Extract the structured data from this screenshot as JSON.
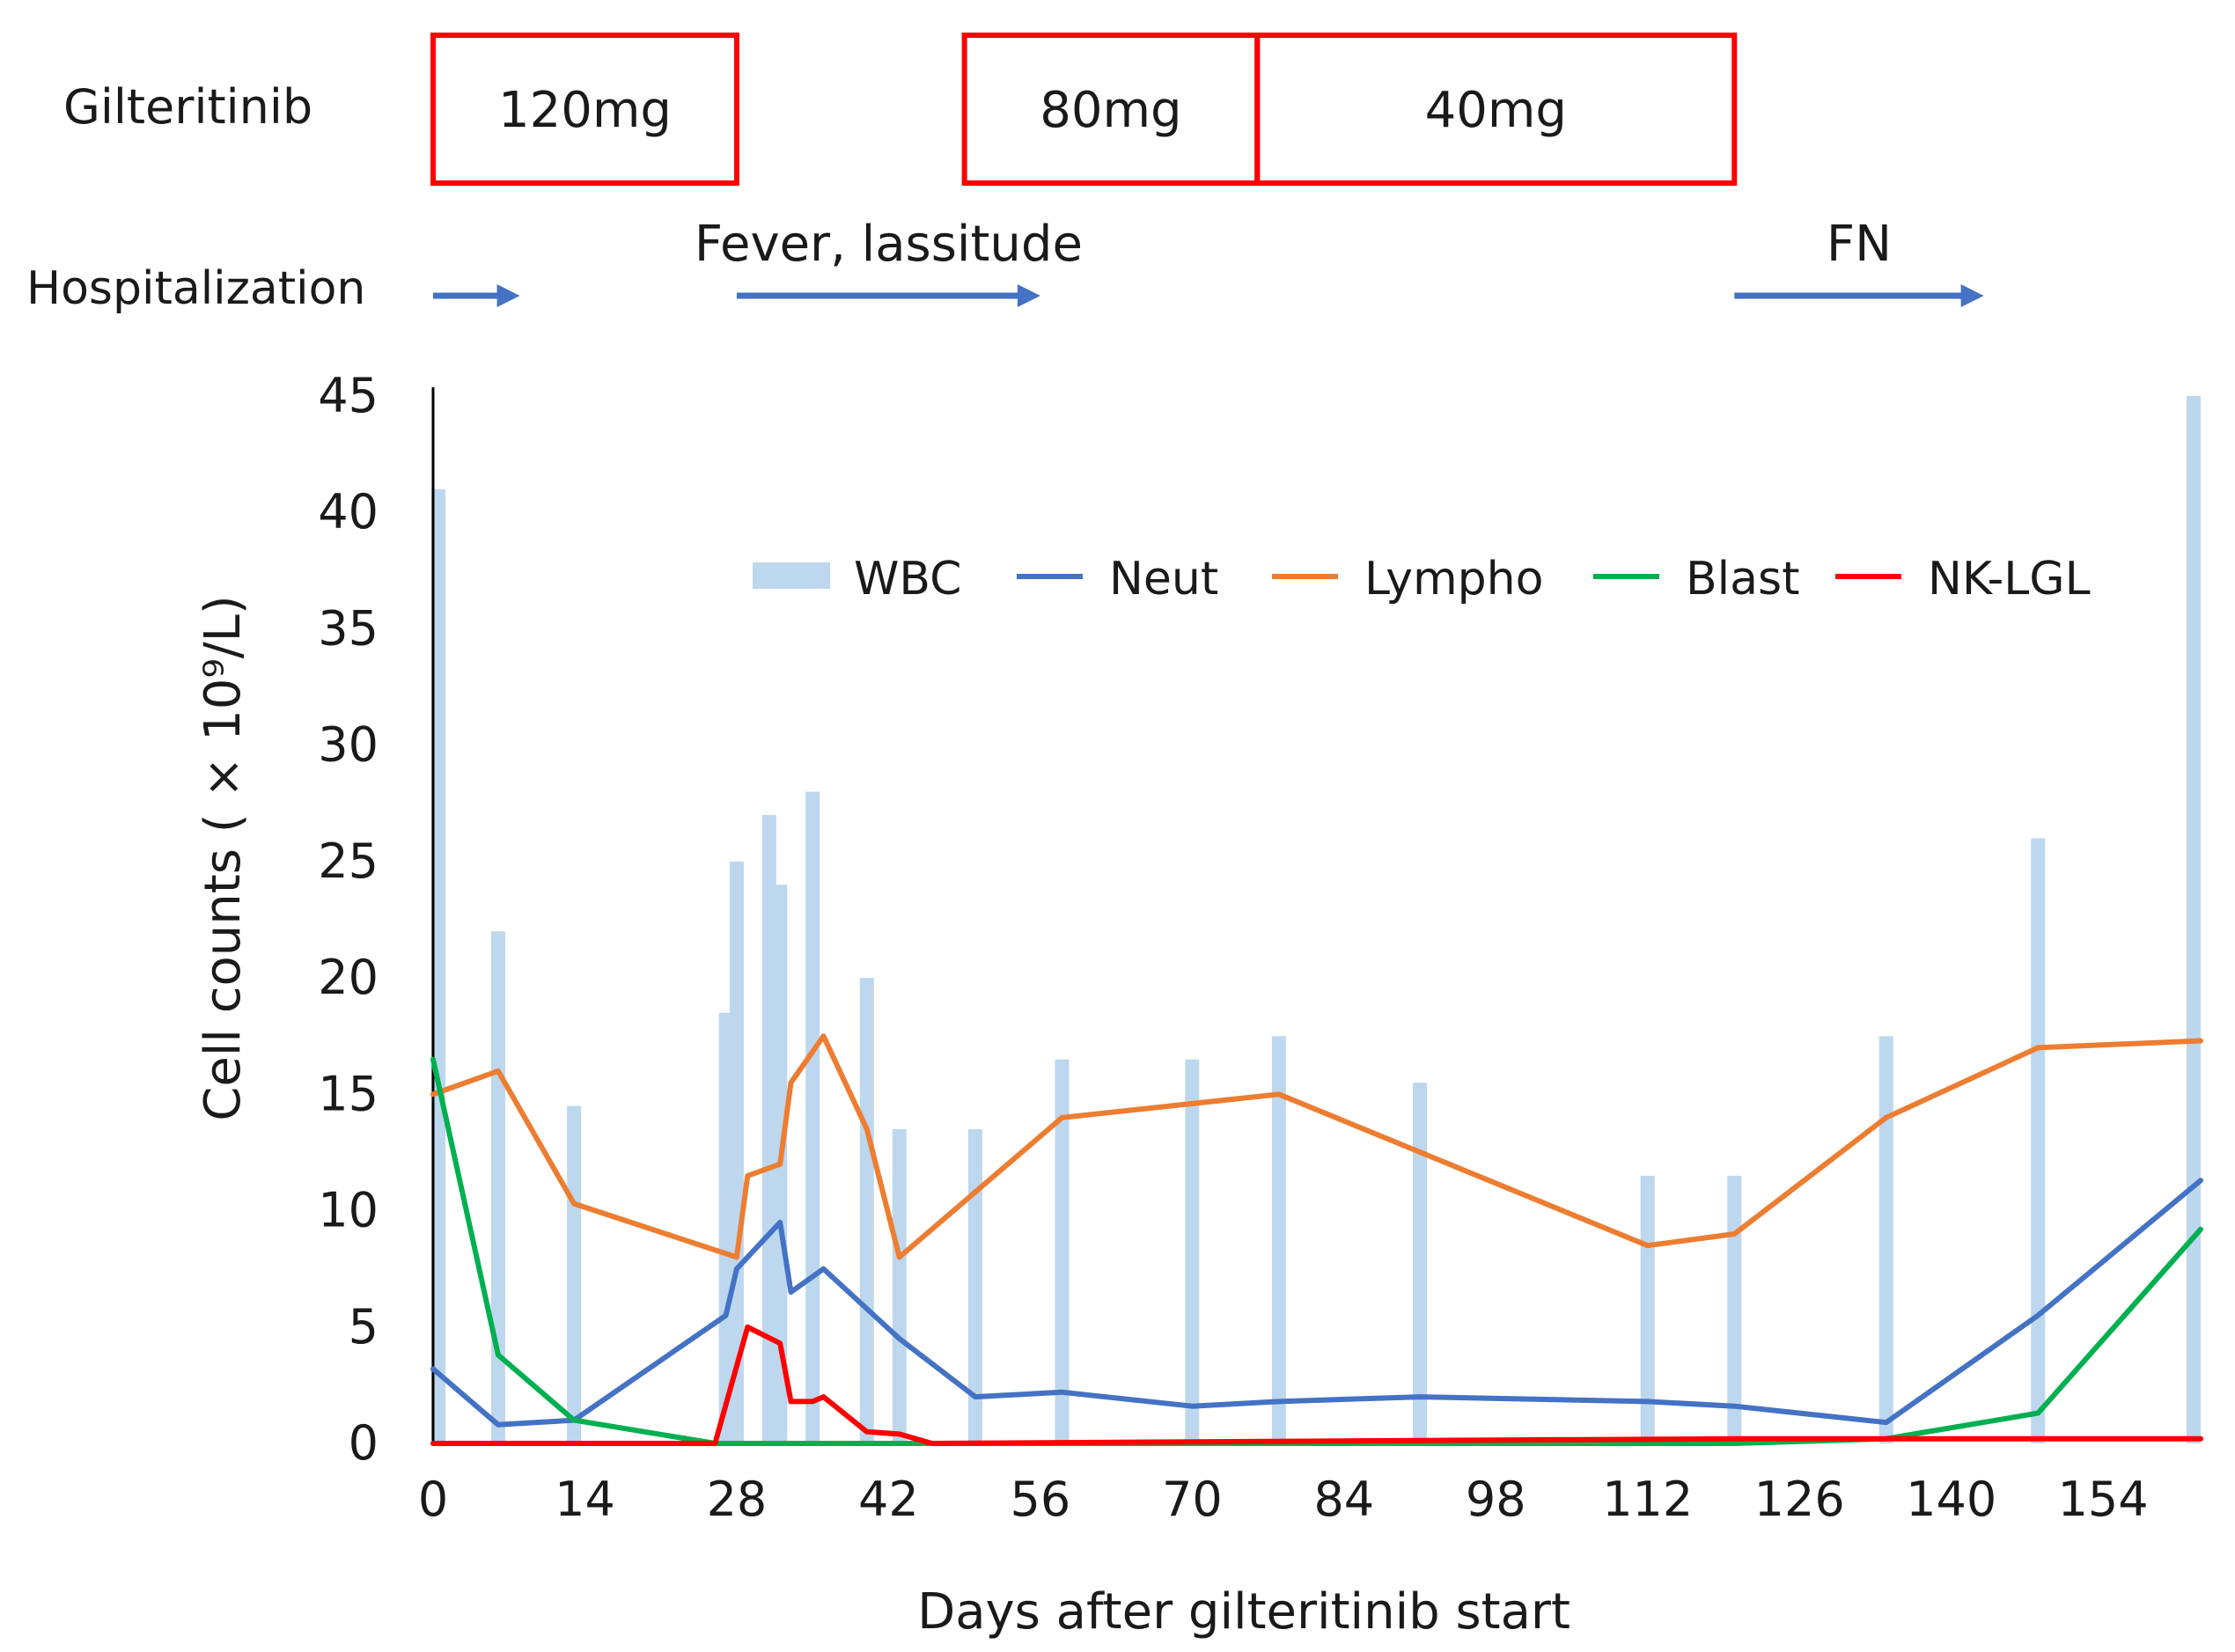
{
  "header": {
    "drug_label": "Gilteritinib",
    "doses": [
      {
        "label": "120mg",
        "start_day": 0,
        "end_day": 28
      },
      {
        "label": "80mg",
        "start_day": 49,
        "end_day": 76
      },
      {
        "label": "40mg",
        "start_day": 76,
        "end_day": 120
      }
    ],
    "events_label": "Hospitalization",
    "events": [
      {
        "label": "",
        "start_day": 0,
        "end_day": 8
      },
      {
        "label": "Fever, lassitude",
        "start_day": 28,
        "end_day": 56
      },
      {
        "label": "FN",
        "start_day": 120,
        "end_day": 143
      }
    ]
  },
  "colors": {
    "WBC": "#bdd7ee",
    "Neut": "#4472c4",
    "Lympho": "#ed7d31",
    "Blast": "#00b050",
    "NK-LGL": "#ff0000",
    "dose_box": "#ff0000",
    "event_arrow": "#4472c4"
  },
  "chart_data": {
    "type": "bar+line",
    "title": "",
    "xlabel": "Days after gilteritinib start",
    "ylabel": "Cell counts ( × 10⁹/L)",
    "xlim": [
      0,
      163
    ],
    "ylim": [
      0,
      45
    ],
    "x_ticks": [
      "0",
      "14",
      "28",
      "42",
      "56",
      "70",
      "84",
      "98",
      "112",
      "126",
      "140",
      "154"
    ],
    "x_tick_values": [
      0,
      14,
      28,
      42,
      56,
      70,
      84,
      98,
      112,
      126,
      140,
      154
    ],
    "y_ticks": [
      "0",
      "5",
      "10",
      "15",
      "20",
      "25",
      "30",
      "35",
      "40",
      "45"
    ],
    "y_tick_values": [
      0,
      5,
      10,
      15,
      20,
      25,
      30,
      35,
      40,
      45
    ],
    "legend": [
      "WBC",
      "Neut",
      "Lympho",
      "Blast",
      "NK-LGL"
    ],
    "wbc_bars": [
      {
        "day": 0,
        "value": 41
      },
      {
        "day": 6,
        "value": 22
      },
      {
        "day": 13,
        "value": 14.5
      },
      {
        "day": 27,
        "value": 18.5
      },
      {
        "day": 28,
        "value": 25
      },
      {
        "day": 31,
        "value": 27
      },
      {
        "day": 32,
        "value": 24
      },
      {
        "day": 35,
        "value": 28
      },
      {
        "day": 40,
        "value": 20
      },
      {
        "day": 43,
        "value": 13.5
      },
      {
        "day": 50,
        "value": 13.5
      },
      {
        "day": 58,
        "value": 16.5
      },
      {
        "day": 70,
        "value": 16.5
      },
      {
        "day": 78,
        "value": 17.5
      },
      {
        "day": 91,
        "value": 15.5
      },
      {
        "day": 112,
        "value": 11.5
      },
      {
        "day": 120,
        "value": 11.5
      },
      {
        "day": 134,
        "value": 17.5
      },
      {
        "day": 148,
        "value": 26
      },
      {
        "day": 163,
        "value": 45
      }
    ],
    "series": [
      {
        "name": "Neut",
        "x": [
          0,
          6,
          13,
          27,
          28,
          32,
          33,
          36,
          43,
          50,
          58,
          70,
          78,
          91,
          112,
          120,
          134,
          148,
          163
        ],
        "values": [
          3.2,
          0.8,
          1.0,
          5.5,
          7.5,
          9.5,
          6.5,
          7.5,
          4.5,
          2.0,
          2.2,
          1.6,
          1.8,
          2.0,
          1.8,
          1.6,
          0.9,
          5.5,
          11.3
        ]
      },
      {
        "name": "Lympho",
        "x": [
          0,
          6,
          13,
          28,
          29,
          32,
          33,
          36,
          40,
          43,
          58,
          78,
          112,
          120,
          134,
          148,
          163
        ],
        "values": [
          15,
          16,
          10.3,
          8,
          11.5,
          12,
          15.5,
          17.5,
          13.5,
          8,
          14,
          15,
          8.5,
          9,
          14,
          17,
          17.3
        ]
      },
      {
        "name": "Blast",
        "x": [
          0,
          6,
          13,
          26,
          120,
          134,
          148,
          163
        ],
        "values": [
          16.5,
          3.8,
          1.0,
          0,
          0,
          0.2,
          1.3,
          9.2
        ]
      },
      {
        "name": "NK-LGL",
        "x": [
          0,
          26,
          29,
          32,
          33,
          35,
          36,
          40,
          43,
          46,
          120,
          163
        ],
        "values": [
          0,
          0,
          5,
          4.3,
          1.8,
          1.8,
          2.0,
          0.5,
          0.4,
          0,
          0.2,
          0.2
        ]
      }
    ]
  }
}
